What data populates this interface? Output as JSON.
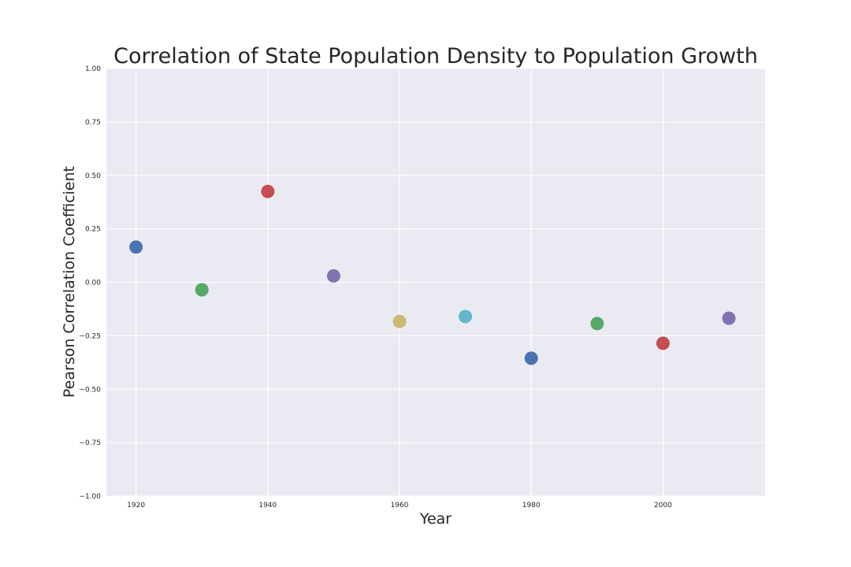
{
  "chart_data": {
    "type": "scatter",
    "title": "Correlation of State Population Density to Population Growth",
    "xlabel": "Year",
    "ylabel": "Pearson Correlation Coefficient",
    "xlim": [
      1915.5,
      2015.5
    ],
    "ylim": [
      -1.0,
      1.0
    ],
    "x_ticks": [
      1920,
      1940,
      1960,
      1980,
      2000
    ],
    "y_ticks": [
      1.0,
      0.75,
      0.5,
      0.25,
      0.0,
      -0.25,
      -0.5,
      -0.75,
      -1.0
    ],
    "x_tick_labels": [
      "1920",
      "1940",
      "1960",
      "1980",
      "2000"
    ],
    "y_tick_labels": [
      "1.00",
      "0.75",
      "0.50",
      "0.25",
      "0.00",
      "−0.25",
      "−0.50",
      "−0.75",
      "−1.00"
    ],
    "grid": true,
    "background_color": "#eaeaf2",
    "points": [
      {
        "x": 1920,
        "y": 0.165,
        "color": "#4c72b0"
      },
      {
        "x": 1930,
        "y": -0.035,
        "color": "#55a868"
      },
      {
        "x": 1940,
        "y": 0.425,
        "color": "#c44e52"
      },
      {
        "x": 1950,
        "y": 0.03,
        "color": "#8172b2"
      },
      {
        "x": 1960,
        "y": -0.183,
        "color": "#ccb974"
      },
      {
        "x": 1970,
        "y": -0.16,
        "color": "#64b5cd"
      },
      {
        "x": 1980,
        "y": -0.355,
        "color": "#4c72b0"
      },
      {
        "x": 1990,
        "y": -0.193,
        "color": "#55a868"
      },
      {
        "x": 2000,
        "y": -0.285,
        "color": "#c44e52"
      },
      {
        "x": 2010,
        "y": -0.168,
        "color": "#8172b2"
      }
    ]
  }
}
